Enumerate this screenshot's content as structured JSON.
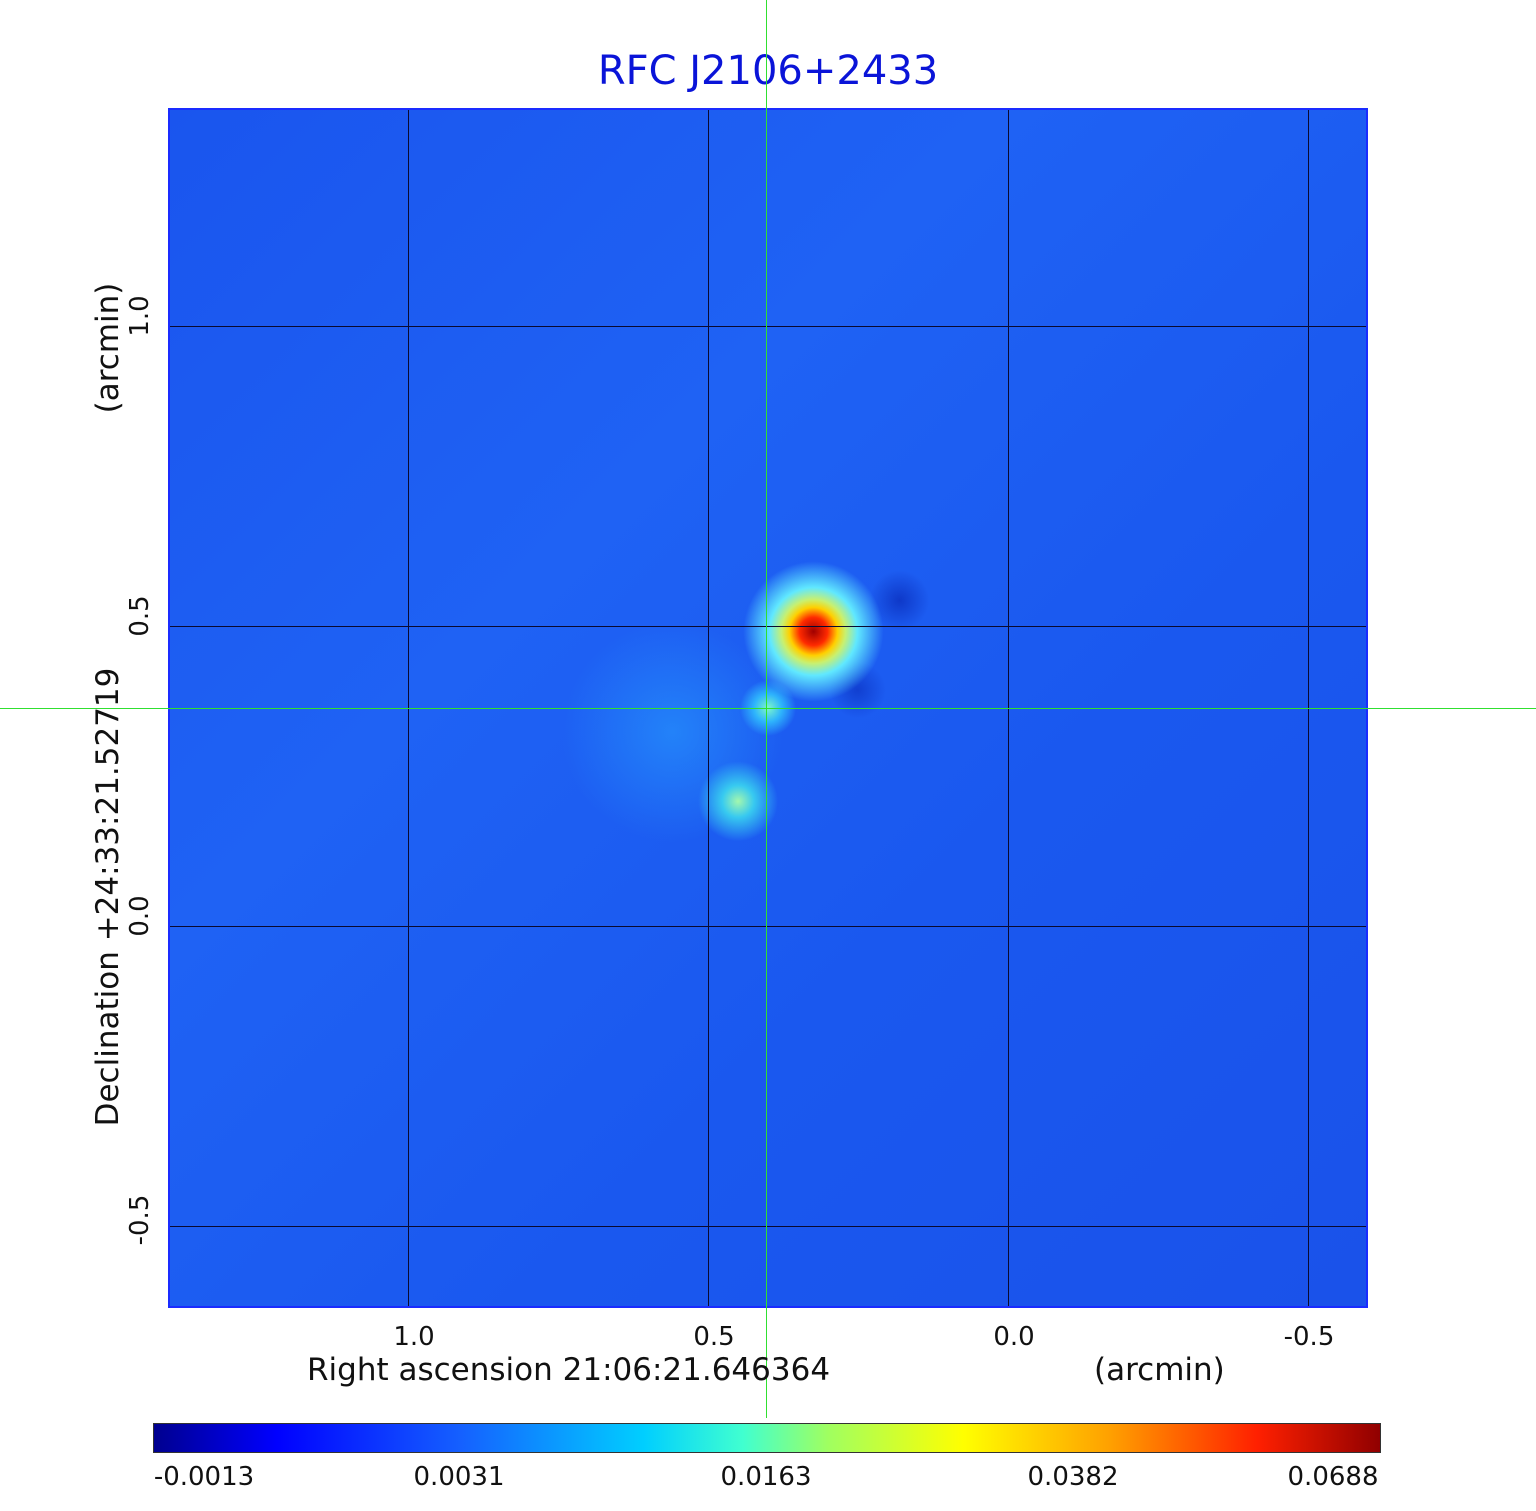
{
  "title": "RFC J2106+2433",
  "x_axis": {
    "label": "Right ascension  21:06:21.646364",
    "unit": "(arcmin)",
    "ticks": [
      "1.0",
      "0.5",
      "0.0",
      "-0.5"
    ]
  },
  "y_axis": {
    "label": "Declination  +24:33:21.52719",
    "unit": "(arcmin)",
    "ticks": [
      "1.0",
      "0.5",
      "0.0",
      "-0.5"
    ]
  },
  "colorbar": {
    "ticks": [
      "-0.0013",
      "0.0031",
      "0.0163",
      "0.0382",
      "0.0688"
    ],
    "colormap": "jet"
  },
  "colors": {
    "title": "#0a14d8",
    "crosshair": "#30e030",
    "grid": "#0a0a30"
  }
}
